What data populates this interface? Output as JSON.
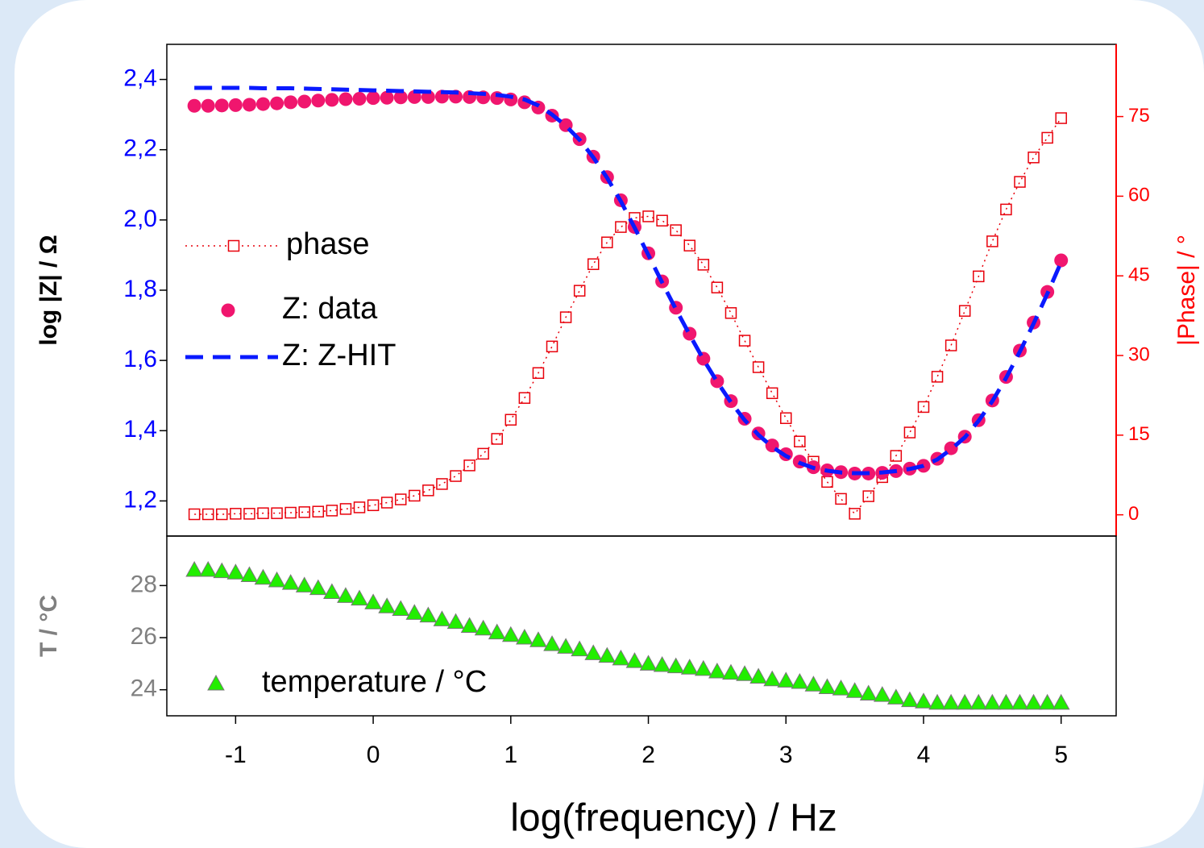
{
  "chart_data": [
    {
      "type": "line",
      "ylabel": "log |Z|   / Ω",
      "y2label": "|Phase|  / °",
      "xlim": [
        -1.5,
        5.4
      ],
      "ylim": [
        1.1,
        2.5
      ],
      "yticks": [
        {
          "value": 1.2,
          "label": "1,2"
        },
        {
          "value": 1.4,
          "label": "1,4"
        },
        {
          "value": 1.6,
          "label": "1,6"
        },
        {
          "value": 1.8,
          "label": "1,8"
        },
        {
          "value": 2.0,
          "label": "2,0"
        },
        {
          "value": 2.2,
          "label": "2,2"
        },
        {
          "value": 2.4,
          "label": "2,4"
        }
      ],
      "y2lim": [
        -4,
        88.6
      ],
      "y2ticks": [
        0,
        15,
        30,
        45,
        60,
        75
      ],
      "ycolor": "#0000ff",
      "y2color": "#ff0000",
      "x": [
        -1.3,
        -1.2,
        -1.1,
        -1,
        -0.9,
        -0.8,
        -0.7,
        -0.6,
        -0.5,
        -0.4,
        -0.3,
        -0.2,
        -0.1,
        0,
        0.1,
        0.2,
        0.3,
        0.4,
        0.5,
        0.6,
        0.7,
        0.8,
        0.9,
        1,
        1.1,
        1.2,
        1.3,
        1.4,
        1.5,
        1.6,
        1.7,
        1.8,
        1.9,
        2,
        2.1,
        2.2,
        2.3,
        2.4,
        2.5,
        2.6,
        2.7,
        2.8,
        2.9,
        3,
        3.1,
        3.2,
        3.3,
        3.4,
        3.5,
        3.6,
        3.7,
        3.8,
        3.9,
        4,
        4.1,
        4.2,
        4.3,
        4.4,
        4.5,
        4.6,
        4.7,
        4.8,
        4.9,
        5
      ],
      "series": [
        {
          "name": "phase",
          "color": "#e8000b",
          "marker": "square",
          "line_style": "dotted",
          "axis": "y2",
          "values": [
            0.1,
            0.1,
            0.1,
            0.2,
            0.2,
            0.3,
            0.3,
            0.4,
            0.5,
            0.6,
            0.8,
            1.1,
            1.4,
            1.8,
            2.3,
            2.9,
            3.6,
            4.6,
            5.8,
            7.3,
            9.3,
            11.5,
            14.3,
            17.9,
            22,
            26.7,
            31.7,
            37.2,
            42.2,
            47.2,
            51.3,
            54.2,
            55.9,
            56.2,
            55.4,
            53.6,
            50.7,
            47.1,
            42.8,
            38,
            32.8,
            27.8,
            22.9,
            18.2,
            13.8,
            10,
            6.2,
            3,
            0.2,
            3.5,
            7.1,
            11.1,
            15.5,
            20.3,
            26,
            31.9,
            38.4,
            44.9,
            51.5,
            57.5,
            62.7,
            67.3,
            71,
            74.7
          ]
        },
        {
          "name": "Z: data",
          "color": "#f0166e",
          "marker": "circle",
          "line_style": "none",
          "values": [
            2.325,
            2.325,
            2.326,
            2.327,
            2.328,
            2.33,
            2.332,
            2.335,
            2.337,
            2.34,
            2.342,
            2.344,
            2.345,
            2.347,
            2.348,
            2.349,
            2.35,
            2.35,
            2.351,
            2.351,
            2.35,
            2.349,
            2.347,
            2.343,
            2.335,
            2.32,
            2.297,
            2.27,
            2.23,
            2.18,
            2.122,
            2.056,
            1.98,
            1.905,
            1.825,
            1.75,
            1.676,
            1.605,
            1.541,
            1.484,
            1.434,
            1.392,
            1.358,
            1.333,
            1.312,
            1.296,
            1.287,
            1.282,
            1.278,
            1.278,
            1.28,
            1.285,
            1.292,
            1.3,
            1.32,
            1.35,
            1.383,
            1.43,
            1.486,
            1.553,
            1.628,
            1.708,
            1.795,
            1.885
          ]
        },
        {
          "name": "Z: Z-HIT",
          "color": "#0a1aff",
          "marker": "none",
          "line_style": "dashed",
          "values": [
            2.376,
            2.376,
            2.376,
            2.376,
            2.376,
            2.375,
            2.375,
            2.375,
            2.374,
            2.373,
            2.372,
            2.371,
            2.37,
            2.369,
            2.368,
            2.367,
            2.366,
            2.365,
            2.364,
            2.363,
            2.361,
            2.359,
            2.356,
            2.351,
            2.343,
            2.326,
            2.3,
            2.268,
            2.228,
            2.178,
            2.12,
            2.053,
            1.978,
            1.9,
            1.822,
            1.746,
            1.673,
            1.603,
            1.539,
            1.481,
            1.43,
            1.388,
            1.354,
            1.328,
            1.308,
            1.294,
            1.286,
            1.281,
            1.279,
            1.279,
            1.281,
            1.285,
            1.291,
            1.3,
            1.318,
            1.347,
            1.381,
            1.428,
            1.484,
            1.55,
            1.625,
            1.705,
            1.79,
            1.88
          ]
        }
      ]
    },
    {
      "type": "scatter",
      "xlabel": "log(frequency)  / Hz",
      "ylabel": "T / °C",
      "xlim": [
        -1.5,
        5.4
      ],
      "xticks": [
        -1,
        0,
        1,
        2,
        3,
        4,
        5
      ],
      "ylim": [
        23,
        29.9
      ],
      "yticks": [
        24,
        26,
        28
      ],
      "ycolor": "#808080",
      "x": [
        -1.3,
        -1.2,
        -1.1,
        -1,
        -0.9,
        -0.8,
        -0.7,
        -0.6,
        -0.5,
        -0.4,
        -0.3,
        -0.2,
        -0.1,
        0,
        0.1,
        0.2,
        0.3,
        0.4,
        0.5,
        0.6,
        0.7,
        0.8,
        0.9,
        1,
        1.1,
        1.2,
        1.3,
        1.4,
        1.5,
        1.6,
        1.7,
        1.8,
        1.9,
        2,
        2.1,
        2.2,
        2.3,
        2.4,
        2.5,
        2.6,
        2.7,
        2.8,
        2.9,
        3,
        3.1,
        3.2,
        3.3,
        3.4,
        3.5,
        3.6,
        3.7,
        3.8,
        3.9,
        4,
        4.1,
        4.2,
        4.3,
        4.4,
        4.5,
        4.6,
        4.7,
        4.8,
        4.9,
        5
      ],
      "series": [
        {
          "name": "temperature / °C",
          "color": "#22ee00",
          "marker": "triangle",
          "line_style": "none",
          "values": [
            28.6,
            28.6,
            28.55,
            28.5,
            28.4,
            28.3,
            28.2,
            28.1,
            28,
            27.9,
            27.75,
            27.6,
            27.5,
            27.35,
            27.2,
            27.1,
            26.95,
            26.85,
            26.7,
            26.6,
            26.45,
            26.35,
            26.2,
            26.1,
            26,
            25.9,
            25.75,
            25.65,
            25.55,
            25.4,
            25.3,
            25.2,
            25.1,
            25,
            24.95,
            24.9,
            24.85,
            24.8,
            24.7,
            24.65,
            24.6,
            24.5,
            24.4,
            24.35,
            24.3,
            24.2,
            24.1,
            24.05,
            23.95,
            23.85,
            23.8,
            23.7,
            23.6,
            23.55,
            23.5,
            23.5,
            23.5,
            23.5,
            23.5,
            23.5,
            23.5,
            23.5,
            23.5,
            23.5
          ]
        }
      ]
    }
  ]
}
